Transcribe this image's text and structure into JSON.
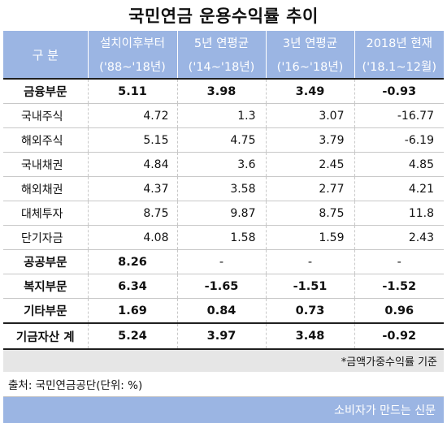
{
  "title": "국민연금 운용수익률 추이",
  "header": {
    "gubun": "구 분",
    "columns": [
      {
        "line1": "설치이후부터",
        "line2": "('88~'18년)"
      },
      {
        "line1": "5년 연평균",
        "line2": "('14~'18년)"
      },
      {
        "line1": "3년 연평균",
        "line2": "('16~'18년)"
      },
      {
        "line1": "2018년 현재",
        "line2": "('18.1~12월)"
      }
    ]
  },
  "rows": [
    {
      "label": "금융부문",
      "values": [
        "5.11",
        "3.98",
        "3.49",
        "-0.93"
      ]
    },
    {
      "label": "국내주식",
      "values": [
        "4.72",
        "1.3",
        "3.07",
        "-16.77"
      ]
    },
    {
      "label": "해외주식",
      "values": [
        "5.15",
        "4.75",
        "3.79",
        "-6.19"
      ]
    },
    {
      "label": "국내채권",
      "values": [
        "4.84",
        "3.6",
        "2.45",
        "4.85"
      ]
    },
    {
      "label": "해외채권",
      "values": [
        "4.37",
        "3.58",
        "2.77",
        "4.21"
      ]
    },
    {
      "label": "대체투자",
      "values": [
        "8.75",
        "9.87",
        "8.75",
        "11.8"
      ]
    },
    {
      "label": "단기자금",
      "values": [
        "4.08",
        "1.58",
        "1.59",
        "2.43"
      ]
    },
    {
      "label": "공공부문",
      "values": [
        "8.26",
        "-",
        "-",
        "-"
      ]
    },
    {
      "label": "복지부문",
      "values": [
        "6.34",
        "-1.65",
        "-1.51",
        "-1.52"
      ]
    },
    {
      "label": "기타부문",
      "values": [
        "1.69",
        "0.84",
        "0.73",
        "0.96"
      ]
    },
    {
      "label": "기금자산 계",
      "values": [
        "5.24",
        "3.97",
        "3.48",
        "-0.92"
      ]
    }
  ],
  "footnote": "*금액가중수익률 기준",
  "source": "출처: 국민연금공단(단위: %)",
  "brand": "소비자가 만드는 신문",
  "colors": {
    "header_bg": "#9bb5e3",
    "footnote_bg": "#e6e6e6"
  }
}
